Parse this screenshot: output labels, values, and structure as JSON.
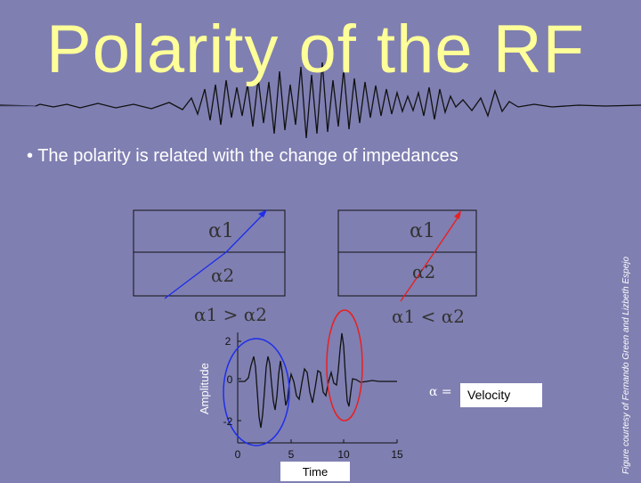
{
  "slide": {
    "title": "Polarity of the RF",
    "bullet": "• The polarity is related with the change of impedances",
    "credit": "Figure courtesy of Fernando Green and Lizbeth Espejo"
  },
  "panels": [
    {
      "top_label": "α1",
      "bottom_label": "α2",
      "relation": "α1 > α2",
      "ray_color": "#1f2fe8"
    },
    {
      "top_label": "α1",
      "bottom_label": "α2",
      "relation": "α1 < α2",
      "ray_color": "#e82020"
    }
  ],
  "plot": {
    "ylabel": "Amplitude",
    "xlabel": "Time",
    "x_ticks": [
      "0",
      "5",
      "10",
      "15"
    ],
    "y_ticks": [
      "2",
      "0",
      "-2"
    ],
    "legend_symbol": "α =",
    "legend_label": "Velocity"
  },
  "colors": {
    "background": "#7f7fb2",
    "title": "#ffff99",
    "blue": "#1f2fe8",
    "red": "#e82020"
  }
}
